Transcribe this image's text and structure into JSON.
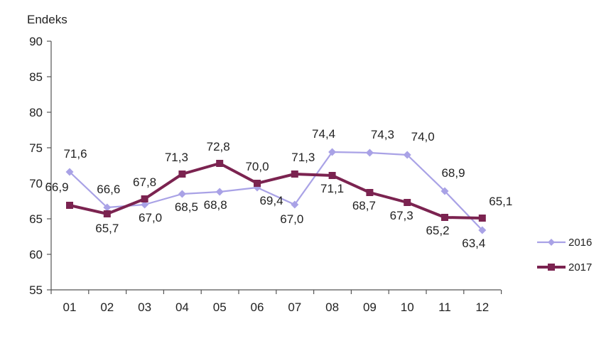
{
  "chart_data": {
    "type": "line",
    "title": "",
    "ylabel": "Endeks",
    "xlabel": "",
    "categories": [
      "01",
      "02",
      "03",
      "04",
      "05",
      "06",
      "07",
      "08",
      "09",
      "10",
      "11",
      "12"
    ],
    "ylim": [
      55,
      90
    ],
    "yticks": [
      55,
      60,
      65,
      70,
      75,
      80,
      85,
      90
    ],
    "grid": false,
    "legend_position": "right",
    "series": [
      {
        "name": "2016",
        "color": "#a9a2e6",
        "marker": "diamond",
        "values": [
          71.6,
          66.6,
          67.0,
          68.5,
          68.8,
          69.4,
          67.0,
          74.4,
          74.3,
          74.0,
          68.9,
          63.4
        ],
        "labels": [
          "71,6",
          "66,6",
          "67,0",
          "68,5",
          "68,8",
          "69,4",
          "67,0",
          "74,4",
          "74,3",
          "74,0",
          "68,9",
          "63,4"
        ]
      },
      {
        "name": "2017",
        "color": "#7b2350",
        "marker": "square",
        "values": [
          66.9,
          65.7,
          67.8,
          71.3,
          72.8,
          70.0,
          71.3,
          71.1,
          68.7,
          67.3,
          65.2,
          65.1
        ],
        "labels": [
          "66,9",
          "65,7",
          "67,8",
          "71,3",
          "72,8",
          "70,0",
          "71,3",
          "71,1",
          "68,7",
          "67,3",
          "65,2",
          "65,1"
        ]
      }
    ]
  }
}
